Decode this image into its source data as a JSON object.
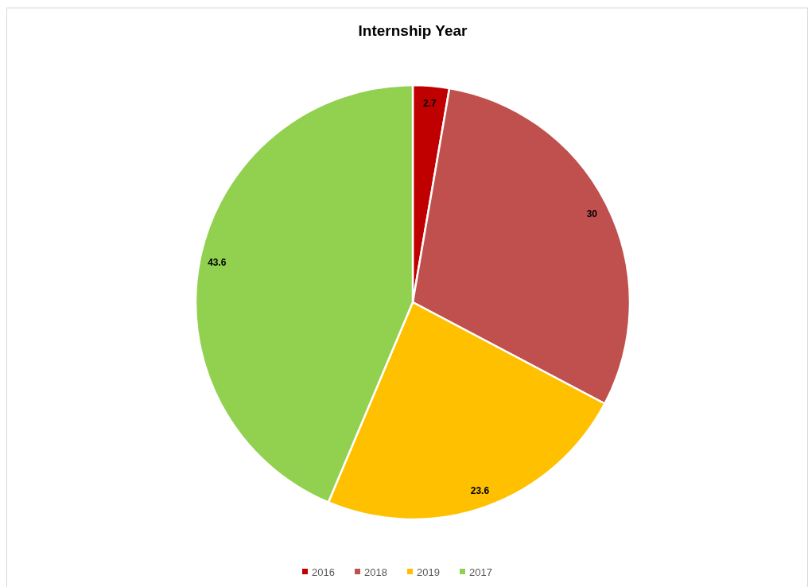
{
  "chart_data": {
    "type": "pie",
    "title": "Internship Year",
    "categories": [
      "2016",
      "2018",
      "2019",
      "2017"
    ],
    "values": [
      2.7,
      30,
      23.6,
      43.6
    ],
    "colors": [
      "#c00000",
      "#c0504d",
      "#ffc000",
      "#92d050"
    ],
    "data_labels": true,
    "legend": "bottom"
  }
}
